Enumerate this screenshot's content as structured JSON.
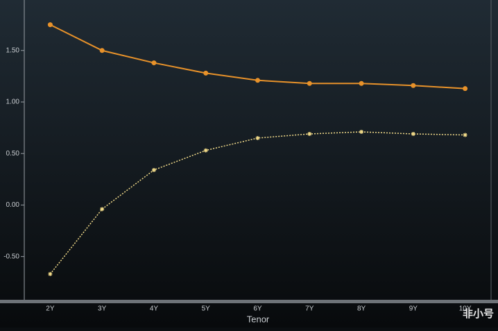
{
  "chart_data": {
    "type": "line",
    "x_label": "Tenor",
    "categories": [
      "2Y",
      "3Y",
      "4Y",
      "5Y",
      "6Y",
      "7Y",
      "8Y",
      "9Y",
      "10Y"
    ],
    "series": [
      {
        "color": "#e8922a",
        "marker": "circle",
        "line_style": "solid",
        "values": [
          1.75,
          1.5,
          1.38,
          1.28,
          1.21,
          1.18,
          1.18,
          1.16,
          1.13
        ]
      },
      {
        "color": "#f3dc8a",
        "marker": "asterisk",
        "line_style": "dotted",
        "values": [
          -0.67,
          -0.04,
          0.34,
          0.53,
          0.65,
          0.69,
          0.71,
          0.69,
          0.68
        ]
      }
    ],
    "ylim": [
      -0.94,
      1.99
    ],
    "yticks": [
      {
        "value": -0.5,
        "label": "-0.50"
      },
      {
        "value": 0,
        "label": "0.00"
      },
      {
        "value": 0.5,
        "label": "0.50"
      },
      {
        "value": 1,
        "label": "1.00"
      },
      {
        "value": 1.5,
        "label": "1.50"
      }
    ],
    "grid": false
  },
  "watermark": "非小号"
}
